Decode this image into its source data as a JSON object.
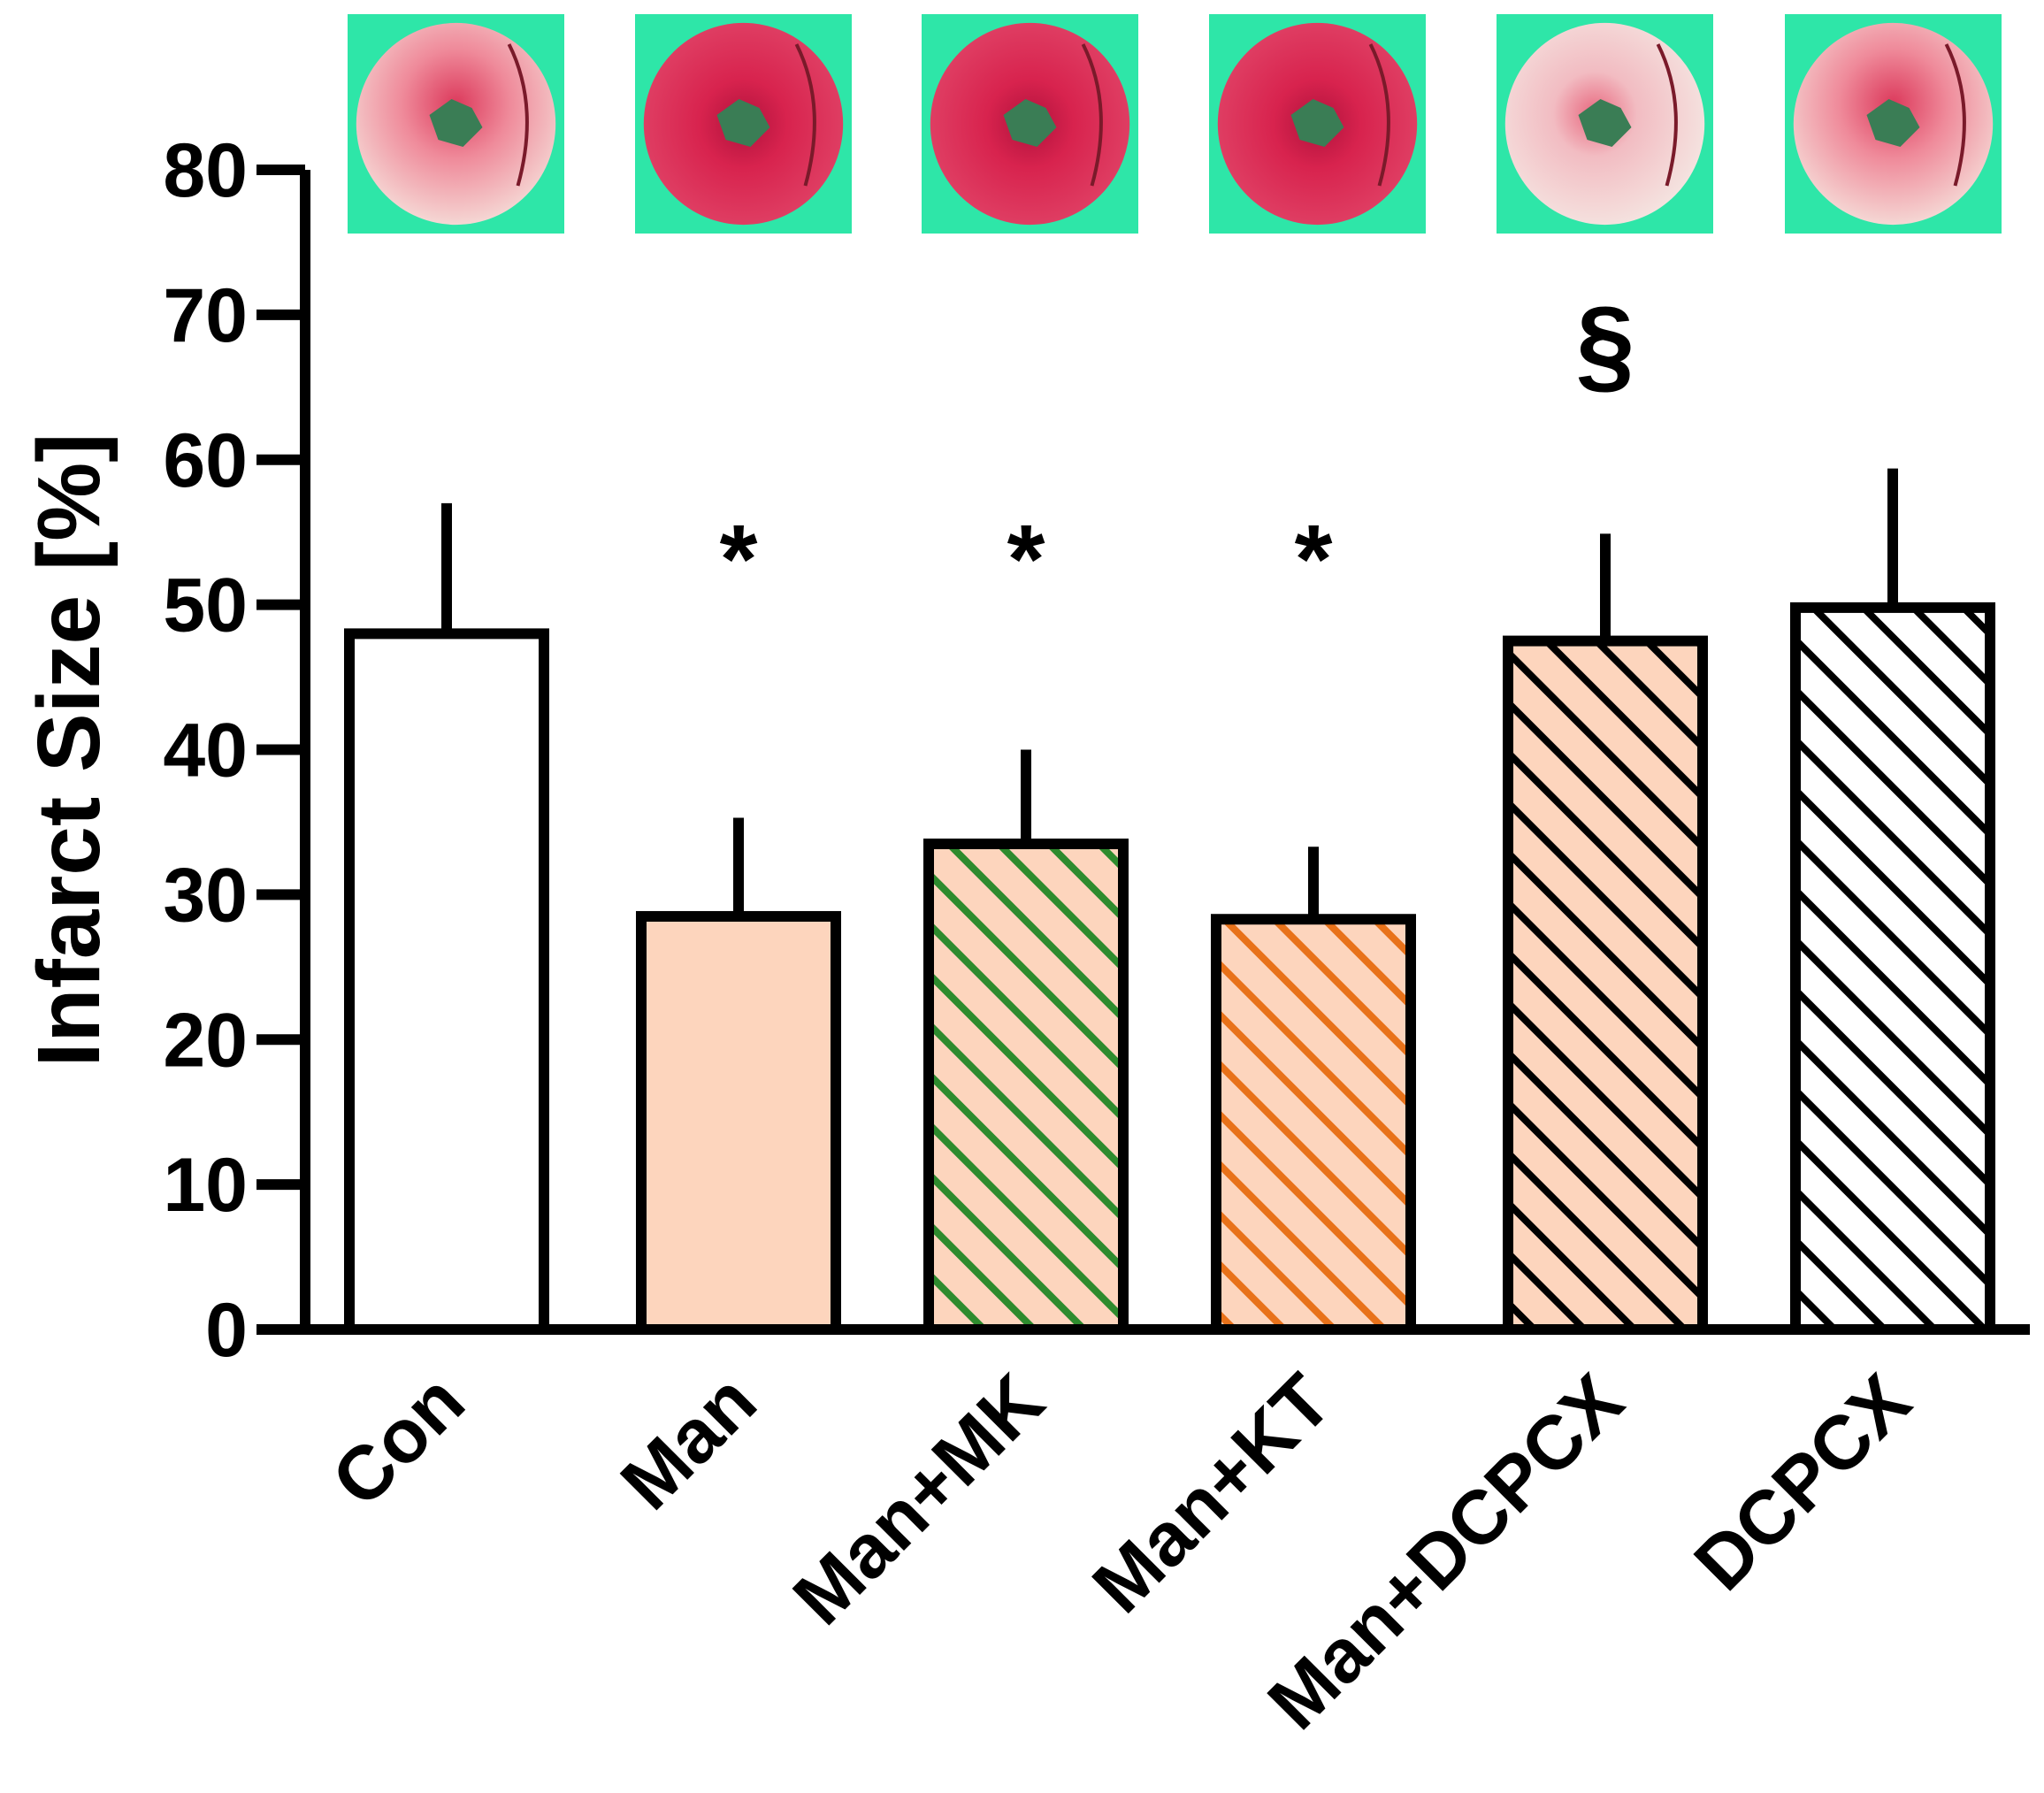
{
  "chart_data": {
    "type": "bar",
    "title": "",
    "xlabel": "",
    "ylabel": "Infarct Size [%]",
    "ylim": [
      0,
      80
    ],
    "yticks": [
      0,
      10,
      20,
      30,
      40,
      50,
      60,
      70,
      80
    ],
    "grid": false,
    "categories": [
      "Con",
      "Man",
      "Man+MK",
      "Man+KT",
      "Man+DCPCX",
      "DCPCX"
    ],
    "values": [
      48,
      28.5,
      33.5,
      28.3,
      47.5,
      49.8
    ],
    "error_upper": [
      9,
      6.8,
      6.5,
      5,
      7.4,
      9.6
    ],
    "annotations": [
      "",
      "*",
      "*",
      "*",
      "§",
      ""
    ],
    "bar_styles": [
      {
        "fill": "#ffffff",
        "hatch": null
      },
      {
        "fill": "#fdd5bd",
        "hatch": null
      },
      {
        "fill": "#fdd5bd",
        "hatch": "#2e8b2e"
      },
      {
        "fill": "#fdd5bd",
        "hatch": "#e8721a"
      },
      {
        "fill": "#fdd5bd",
        "hatch": "#000000"
      },
      {
        "fill": "#ffffff",
        "hatch": "#000000"
      }
    ],
    "thumbnails": "heart-slice-image per group",
    "colors": {
      "axis": "#000000",
      "thumb_background": "#2ee6a8",
      "slice_base": "#d8234e",
      "slice_pale": "#f2dada"
    }
  }
}
